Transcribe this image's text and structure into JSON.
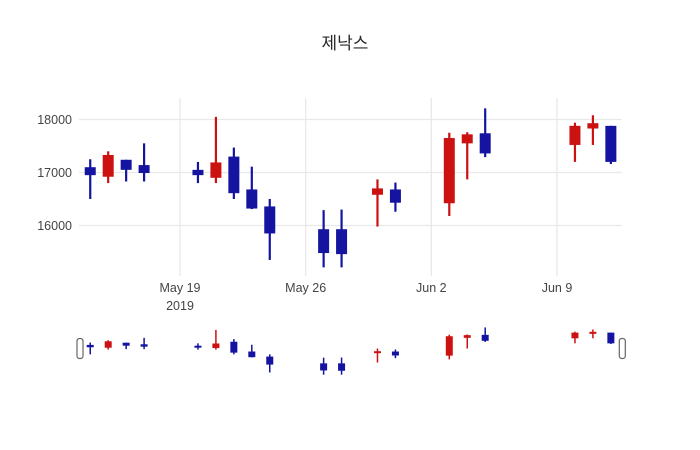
{
  "chart_data": {
    "type": "candlestick",
    "title": "제낙스",
    "legend": "none",
    "grid": "on",
    "colors": {
      "increasing": "#cc1111",
      "decreasing": "#1414a0",
      "grid": "#e9e9e9",
      "tick_label": "#444444",
      "title": "#2a2a2a",
      "slider_handle_border": "#666666",
      "slider_handle_fill": "#ffffff"
    },
    "y_axis": {
      "tick_values": [
        18000,
        17000,
        16000
      ],
      "tick_labels": [
        "18000",
        "17000",
        "16000"
      ],
      "approx_range": [
        15050,
        18400
      ]
    },
    "x_axis": {
      "ticks": [
        {
          "label": "May 19",
          "sublabel": "2019",
          "date": "2019-05-19"
        },
        {
          "label": "May 26",
          "sublabel": "",
          "date": "2019-05-26"
        },
        {
          "label": "Jun 2",
          "sublabel": "",
          "date": "2019-06-02"
        },
        {
          "label": "Jun 9",
          "sublabel": "",
          "date": "2019-06-09"
        }
      ],
      "approx_range": [
        "2019-05-13",
        "2019-06-13"
      ]
    },
    "rangeslider": {
      "visible": true,
      "y_range": [
        15000,
        18300
      ]
    },
    "candles": [
      {
        "date": "2019-05-14",
        "open": 17100,
        "high": 17250,
        "low": 16500,
        "close": 16950
      },
      {
        "date": "2019-05-15",
        "open": 16920,
        "high": 17400,
        "low": 16800,
        "close": 17330
      },
      {
        "date": "2019-05-16",
        "open": 17240,
        "high": 17240,
        "low": 16830,
        "close": 17050
      },
      {
        "date": "2019-05-17",
        "open": 17140,
        "high": 17550,
        "low": 16830,
        "close": 16990
      },
      {
        "date": "2019-05-20",
        "open": 17050,
        "high": 17200,
        "low": 16800,
        "close": 16950
      },
      {
        "date": "2019-05-21",
        "open": 16900,
        "high": 18050,
        "low": 16800,
        "close": 17190
      },
      {
        "date": "2019-05-22",
        "open": 17300,
        "high": 17470,
        "low": 16500,
        "close": 16610
      },
      {
        "date": "2019-05-23",
        "open": 16680,
        "high": 17110,
        "low": 16310,
        "close": 16320
      },
      {
        "date": "2019-05-24",
        "open": 16360,
        "high": 16500,
        "low": 15350,
        "close": 15850
      },
      {
        "date": "2019-05-27",
        "open": 15930,
        "high": 16290,
        "low": 15210,
        "close": 15480
      },
      {
        "date": "2019-05-28",
        "open": 15930,
        "high": 16300,
        "low": 15210,
        "close": 15460
      },
      {
        "date": "2019-05-30",
        "open": 16580,
        "high": 16870,
        "low": 15980,
        "close": 16700
      },
      {
        "date": "2019-05-31",
        "open": 16680,
        "high": 16810,
        "low": 16260,
        "close": 16430
      },
      {
        "date": "2019-06-03",
        "open": 16420,
        "high": 17750,
        "low": 16180,
        "close": 17650
      },
      {
        "date": "2019-06-04",
        "open": 17550,
        "high": 17760,
        "low": 16870,
        "close": 17720
      },
      {
        "date": "2019-06-05",
        "open": 17740,
        "high": 18210,
        "low": 17290,
        "close": 17360
      },
      {
        "date": "2019-06-10",
        "open": 17520,
        "high": 17940,
        "low": 17200,
        "close": 17880
      },
      {
        "date": "2019-06-11",
        "open": 17830,
        "high": 18080,
        "low": 17520,
        "close": 17930
      },
      {
        "date": "2019-06-12",
        "open": 17880,
        "high": 17880,
        "low": 17160,
        "close": 17200
      }
    ]
  }
}
